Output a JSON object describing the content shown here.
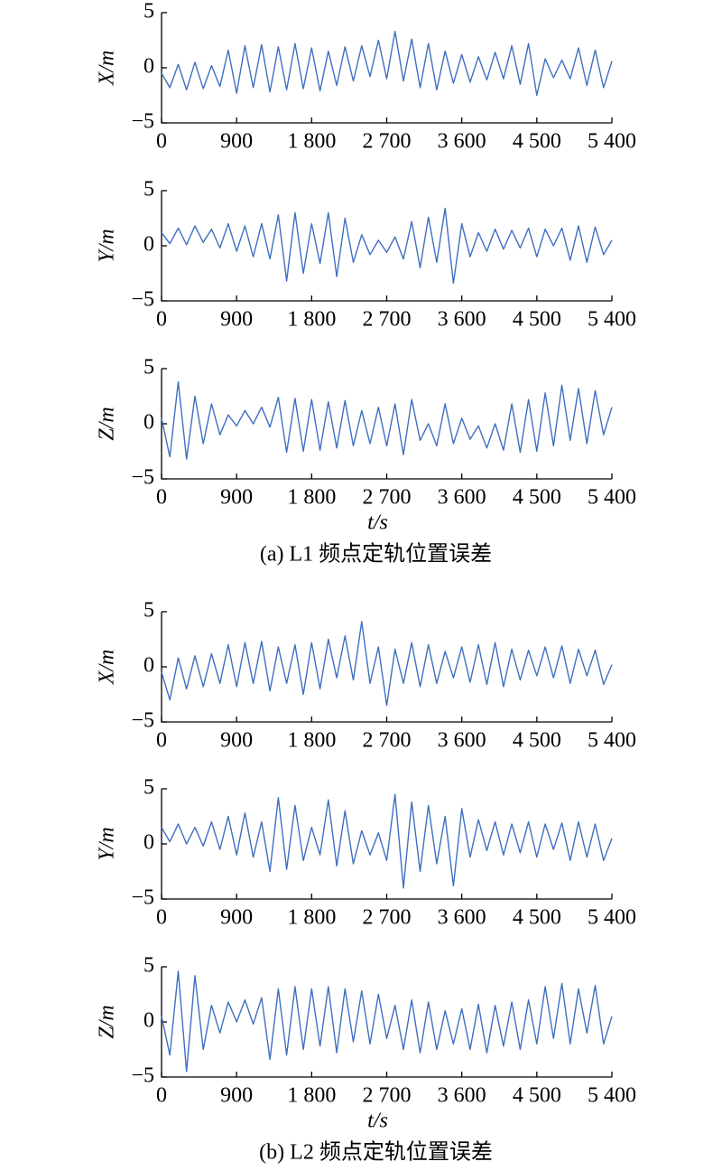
{
  "chart_data": [
    {
      "type": "line",
      "ylabel": "X/m",
      "color": "#3f6fc0",
      "xlim": [
        0,
        5400
      ],
      "ylim": [
        -5,
        5
      ],
      "xticks": [
        0,
        900,
        {
          "value": 1800,
          "label": "1 800"
        },
        {
          "value": 2700,
          "label": "2 700"
        },
        {
          "value": 3600,
          "label": "3 600"
        },
        {
          "value": 4500,
          "label": "4 500"
        },
        {
          "value": 5400,
          "label": "5 400"
        }
      ],
      "yticks": [
        {
          "value": -5,
          "label": "−5"
        },
        0,
        5
      ],
      "x": [
        0,
        100,
        200,
        300,
        400,
        500,
        600,
        700,
        800,
        900,
        1000,
        1100,
        1200,
        1300,
        1400,
        1500,
        1600,
        1700,
        1800,
        1900,
        2000,
        2100,
        2200,
        2300,
        2400,
        2500,
        2600,
        2700,
        2800,
        2900,
        3000,
        3100,
        3200,
        3300,
        3400,
        3500,
        3600,
        3700,
        3800,
        3900,
        4000,
        4100,
        4200,
        4300,
        4400,
        4500,
        4600,
        4700,
        4800,
        4900,
        5000,
        5100,
        5200,
        5300,
        5400
      ],
      "values": [
        -0.5,
        -1.8,
        0.3,
        -2.0,
        0.5,
        -1.9,
        0.2,
        -1.7,
        1.6,
        -2.3,
        2.0,
        -1.8,
        2.1,
        -2.2,
        1.9,
        -2.0,
        2.2,
        -1.9,
        1.8,
        -2.1,
        1.5,
        -1.6,
        1.9,
        -1.2,
        2.0,
        -0.8,
        2.5,
        -1.0,
        3.3,
        -1.2,
        2.6,
        -1.8,
        2.2,
        -2.0,
        1.5,
        -1.4,
        1.2,
        -1.3,
        1.0,
        -1.1,
        1.4,
        -1.0,
        2.0,
        -1.5,
        2.2,
        -2.5,
        0.8,
        -0.9,
        0.7,
        -1.0,
        1.8,
        -1.6,
        1.6,
        -1.8,
        0.6
      ]
    },
    {
      "type": "line",
      "ylabel": "Y/m",
      "color": "#3f6fc0",
      "xlim": [
        0,
        5400
      ],
      "ylim": [
        -5,
        5
      ],
      "xticks": [
        0,
        900,
        {
          "value": 1800,
          "label": "1 800"
        },
        {
          "value": 2700,
          "label": "2 700"
        },
        {
          "value": 3600,
          "label": "3 600"
        },
        {
          "value": 4500,
          "label": "4 500"
        },
        {
          "value": 5400,
          "label": "5 400"
        }
      ],
      "yticks": [
        {
          "value": -5,
          "label": "−5"
        },
        0,
        5
      ],
      "x": [
        0,
        100,
        200,
        300,
        400,
        500,
        600,
        700,
        800,
        900,
        1000,
        1100,
        1200,
        1300,
        1400,
        1500,
        1600,
        1700,
        1800,
        1900,
        2000,
        2100,
        2200,
        2300,
        2400,
        2500,
        2600,
        2700,
        2800,
        2900,
        3000,
        3100,
        3200,
        3300,
        3400,
        3500,
        3600,
        3700,
        3800,
        3900,
        4000,
        4100,
        4200,
        4300,
        4400,
        4500,
        4600,
        4700,
        4800,
        4900,
        5000,
        5100,
        5200,
        5300,
        5400
      ],
      "values": [
        1.2,
        0.2,
        1.6,
        0.1,
        1.8,
        0.3,
        1.5,
        -0.2,
        2.0,
        -0.5,
        1.8,
        -1.0,
        2.0,
        -1.2,
        2.8,
        -3.2,
        3.0,
        -2.5,
        2.0,
        -1.6,
        3.0,
        -2.8,
        2.5,
        -1.5,
        1.0,
        -0.8,
        0.5,
        -0.6,
        0.8,
        -1.2,
        2.2,
        -2.0,
        2.6,
        -1.5,
        3.4,
        -3.4,
        2.0,
        -1.0,
        1.2,
        -0.5,
        1.5,
        -0.3,
        1.4,
        -0.2,
        1.6,
        -1.0,
        1.5,
        0.0,
        1.6,
        -1.3,
        1.8,
        -1.5,
        1.7,
        -0.8,
        0.5
      ]
    },
    {
      "type": "line",
      "ylabel": "Z/m",
      "xlabel": "t/s",
      "caption": "(a) L1 频点定轨位置误差",
      "color": "#3f6fc0",
      "xlim": [
        0,
        5400
      ],
      "ylim": [
        -5,
        5
      ],
      "xticks": [
        0,
        900,
        {
          "value": 1800,
          "label": "1 800"
        },
        {
          "value": 2700,
          "label": "2 700"
        },
        {
          "value": 3600,
          "label": "3 600"
        },
        {
          "value": 4500,
          "label": "4 500"
        },
        {
          "value": 5400,
          "label": "5 400"
        }
      ],
      "yticks": [
        {
          "value": -5,
          "label": "−5"
        },
        0,
        5
      ],
      "x": [
        0,
        100,
        200,
        300,
        400,
        500,
        600,
        700,
        800,
        900,
        1000,
        1100,
        1200,
        1300,
        1400,
        1500,
        1600,
        1700,
        1800,
        1900,
        2000,
        2100,
        2200,
        2300,
        2400,
        2500,
        2600,
        2700,
        2800,
        2900,
        3000,
        3100,
        3200,
        3300,
        3400,
        3500,
        3600,
        3700,
        3800,
        3900,
        4000,
        4100,
        4200,
        4300,
        4400,
        4500,
        4600,
        4700,
        4800,
        4900,
        5000,
        5100,
        5200,
        5300,
        5400
      ],
      "values": [
        0.5,
        -3.0,
        3.8,
        -3.2,
        2.5,
        -1.8,
        1.8,
        -1.0,
        0.8,
        -0.2,
        1.2,
        0.0,
        1.5,
        -0.3,
        2.4,
        -2.6,
        2.3,
        -2.5,
        2.2,
        -2.4,
        2.0,
        -2.2,
        2.1,
        -2.0,
        1.2,
        -1.8,
        1.5,
        -2.0,
        1.8,
        -2.8,
        2.2,
        -1.5,
        0.0,
        -2.0,
        1.8,
        -1.8,
        0.5,
        -1.4,
        -0.2,
        -2.2,
        0.0,
        -2.4,
        1.8,
        -2.6,
        2.2,
        -2.5,
        2.8,
        -2.0,
        3.5,
        -1.5,
        3.2,
        -1.8,
        3.0,
        -1.0,
        1.5
      ]
    },
    {
      "type": "line",
      "ylabel": "X/m",
      "color": "#3f6fc0",
      "xlim": [
        0,
        5400
      ],
      "ylim": [
        -5,
        5
      ],
      "xticks": [
        0,
        900,
        {
          "value": 1800,
          "label": "1 800"
        },
        {
          "value": 2700,
          "label": "2 700"
        },
        {
          "value": 3600,
          "label": "3 600"
        },
        {
          "value": 4500,
          "label": "4 500"
        },
        {
          "value": 5400,
          "label": "5 400"
        }
      ],
      "yticks": [
        {
          "value": -5,
          "label": "−5"
        },
        0,
        5
      ],
      "x": [
        0,
        100,
        200,
        300,
        400,
        500,
        600,
        700,
        800,
        900,
        1000,
        1100,
        1200,
        1300,
        1400,
        1500,
        1600,
        1700,
        1800,
        1900,
        2000,
        2100,
        2200,
        2300,
        2400,
        2500,
        2600,
        2700,
        2800,
        2900,
        3000,
        3100,
        3200,
        3300,
        3400,
        3500,
        3600,
        3700,
        3800,
        3900,
        4000,
        4100,
        4200,
        4300,
        4400,
        4500,
        4600,
        4700,
        4800,
        4900,
        5000,
        5100,
        5200,
        5300,
        5400
      ],
      "values": [
        -0.5,
        -3.0,
        0.8,
        -2.0,
        1.0,
        -1.8,
        1.2,
        -1.5,
        2.0,
        -1.8,
        2.2,
        -1.5,
        2.3,
        -2.2,
        1.8,
        -1.5,
        2.0,
        -2.5,
        2.2,
        -2.0,
        2.5,
        -1.0,
        2.8,
        -1.2,
        4.1,
        -1.5,
        1.8,
        -3.5,
        1.6,
        -1.5,
        2.2,
        -1.8,
        2.0,
        -1.5,
        1.4,
        -1.0,
        1.8,
        -1.4,
        2.0,
        -1.6,
        2.2,
        -1.8,
        1.6,
        -1.2,
        1.5,
        -0.8,
        1.8,
        -1.0,
        1.9,
        -1.5,
        1.6,
        -0.8,
        1.5,
        -1.6,
        0.2
      ]
    },
    {
      "type": "line",
      "ylabel": "Y/m",
      "color": "#3f6fc0",
      "xlim": [
        0,
        5400
      ],
      "ylim": [
        -5,
        5
      ],
      "xticks": [
        0,
        900,
        {
          "value": 1800,
          "label": "1 800"
        },
        {
          "value": 2700,
          "label": "2 700"
        },
        {
          "value": 3600,
          "label": "3 600"
        },
        {
          "value": 4500,
          "label": "4 500"
        },
        {
          "value": 5400,
          "label": "5 400"
        }
      ],
      "yticks": [
        {
          "value": -5,
          "label": "−5"
        },
        0,
        5
      ],
      "x": [
        0,
        100,
        200,
        300,
        400,
        500,
        600,
        700,
        800,
        900,
        1000,
        1100,
        1200,
        1300,
        1400,
        1500,
        1600,
        1700,
        1800,
        1900,
        2000,
        2100,
        2200,
        2300,
        2400,
        2500,
        2600,
        2700,
        2800,
        2900,
        3000,
        3100,
        3200,
        3300,
        3400,
        3500,
        3600,
        3700,
        3800,
        3900,
        4000,
        4100,
        4200,
        4300,
        4400,
        4500,
        4600,
        4700,
        4800,
        4900,
        5000,
        5100,
        5200,
        5300,
        5400
      ],
      "values": [
        1.5,
        0.2,
        1.8,
        0.0,
        1.5,
        -0.2,
        2.0,
        -0.5,
        2.5,
        -1.0,
        2.8,
        -1.2,
        2.0,
        -2.5,
        4.2,
        -2.3,
        3.5,
        -1.5,
        1.5,
        -1.0,
        4.0,
        -2.0,
        3.0,
        -1.8,
        1.2,
        -1.0,
        1.0,
        -1.5,
        4.5,
        -4.0,
        3.8,
        -2.5,
        3.5,
        -1.8,
        2.5,
        -3.8,
        3.2,
        -1.2,
        2.2,
        -0.6,
        2.0,
        -1.0,
        1.8,
        -0.8,
        2.0,
        -1.2,
        1.8,
        -0.5,
        1.9,
        -1.5,
        2.0,
        -1.2,
        1.8,
        -1.5,
        0.5
      ]
    },
    {
      "type": "line",
      "ylabel": "Z/m",
      "xlabel": "t/s",
      "caption": "(b) L2 频点定轨位置误差",
      "color": "#3f6fc0",
      "xlim": [
        0,
        5400
      ],
      "ylim": [
        -5,
        5
      ],
      "xticks": [
        0,
        900,
        {
          "value": 1800,
          "label": "1 800"
        },
        {
          "value": 2700,
          "label": "2 700"
        },
        {
          "value": 3600,
          "label": "3 600"
        },
        {
          "value": 4500,
          "label": "4 500"
        },
        {
          "value": 5400,
          "label": "5 400"
        }
      ],
      "yticks": [
        {
          "value": -5,
          "label": "−5"
        },
        0,
        5
      ],
      "x": [
        0,
        100,
        200,
        300,
        400,
        500,
        600,
        700,
        800,
        900,
        1000,
        1100,
        1200,
        1300,
        1400,
        1500,
        1600,
        1700,
        1800,
        1900,
        2000,
        2100,
        2200,
        2300,
        2400,
        2500,
        2600,
        2700,
        2800,
        2900,
        3000,
        3100,
        3200,
        3300,
        3400,
        3500,
        3600,
        3700,
        3800,
        3900,
        4000,
        4100,
        4200,
        4300,
        4400,
        4500,
        4600,
        4700,
        4800,
        4900,
        5000,
        5100,
        5200,
        5300,
        5400
      ],
      "values": [
        0.5,
        -3.0,
        4.6,
        -4.5,
        4.2,
        -2.5,
        1.5,
        -1.0,
        1.8,
        0.0,
        2.0,
        -0.2,
        2.2,
        -3.4,
        3.0,
        -3.0,
        3.2,
        -2.5,
        3.0,
        -2.2,
        3.2,
        -2.8,
        3.0,
        -1.8,
        2.8,
        -2.0,
        2.5,
        -1.5,
        1.5,
        -2.5,
        2.0,
        -2.8,
        1.8,
        -2.5,
        1.0,
        -2.0,
        1.2,
        -2.5,
        1.6,
        -2.8,
        1.5,
        -2.2,
        1.8,
        -2.5,
        2.0,
        -2.0,
        3.2,
        -1.5,
        3.5,
        -2.0,
        3.0,
        -1.0,
        3.3,
        -2.0,
        0.5
      ]
    }
  ]
}
